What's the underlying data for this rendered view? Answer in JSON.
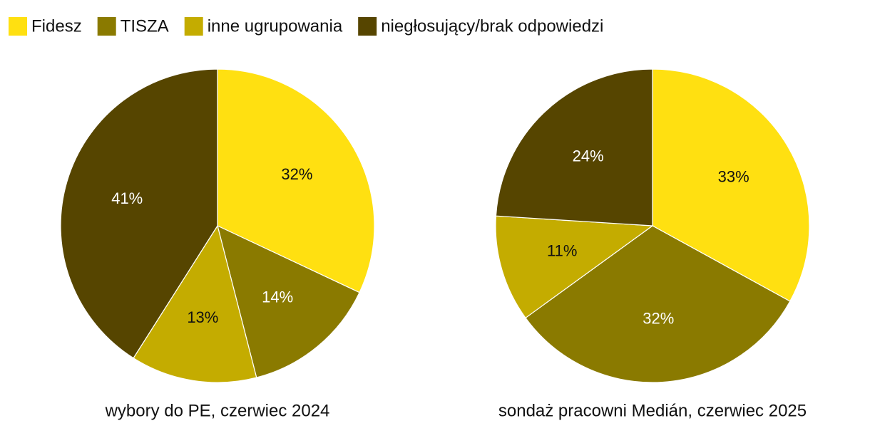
{
  "chart_data": [
    {
      "type": "pie",
      "title": "wybory do PE, czerwiec 2024",
      "categories": [
        "Fidesz",
        "TISZA",
        "inne ugrupowania",
        "niegłosujący/brak odpowiedzi"
      ],
      "values": [
        32,
        14,
        13,
        41
      ],
      "value_labels": [
        "32%",
        "14%",
        "13%",
        "41%"
      ],
      "colors": [
        "#ffe011",
        "#8a7a00",
        "#c4ac00",
        "#564500"
      ]
    },
    {
      "type": "pie",
      "title": "sondaż pracowni Medián, czerwiec 2025",
      "categories": [
        "Fidesz",
        "TISZA",
        "inne ugrupowania",
        "niegłosujący/brak odpowiedzi"
      ],
      "values": [
        33,
        32,
        11,
        24
      ],
      "value_labels": [
        "33%",
        "32%",
        "11%",
        "24%"
      ],
      "colors": [
        "#ffe011",
        "#8a7a00",
        "#c4ac00",
        "#564500"
      ]
    }
  ]
}
